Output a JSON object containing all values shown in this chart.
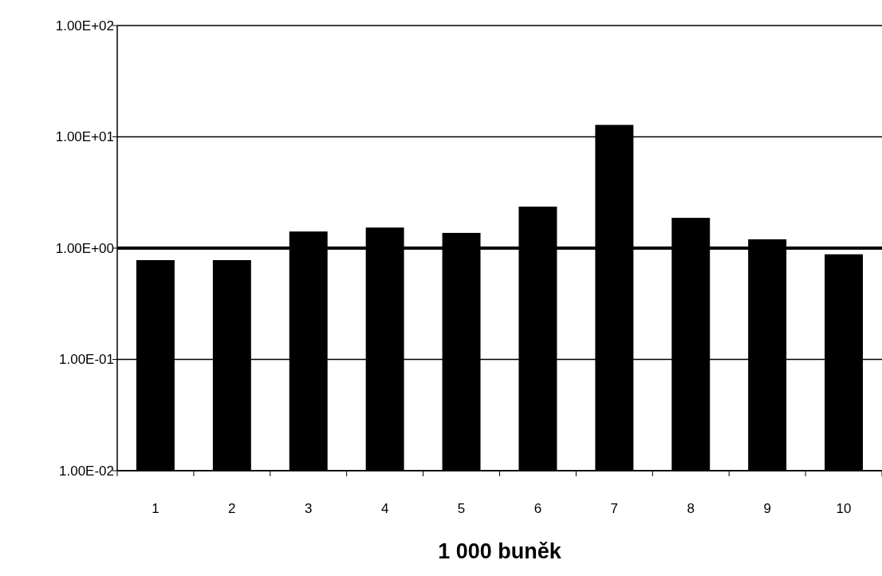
{
  "chart_data": {
    "type": "bar",
    "xlabel": "1 000 buněk",
    "categories": [
      "1",
      "2",
      "3",
      "4",
      "5",
      "6",
      "7",
      "8",
      "9",
      "10"
    ],
    "values": [
      0.78,
      0.78,
      1.41,
      1.53,
      1.37,
      2.36,
      12.8,
      1.87,
      1.2,
      0.88
    ],
    "color": "#000000",
    "log": true,
    "ylim": [
      0.01,
      100
    ],
    "yticks": [
      {
        "value": 0.01,
        "label": "1.00E-02"
      },
      {
        "value": 0.1,
        "label": "1.00E-01"
      },
      {
        "value": 1,
        "label": "1.00E+00"
      },
      {
        "value": 10,
        "label": "1.00E+01"
      },
      {
        "value": 100,
        "label": "1.00E+02"
      }
    ],
    "grid": "y",
    "ref_lines": [
      {
        "axis": "y",
        "value": 1,
        "color": "#000000"
      }
    ]
  }
}
